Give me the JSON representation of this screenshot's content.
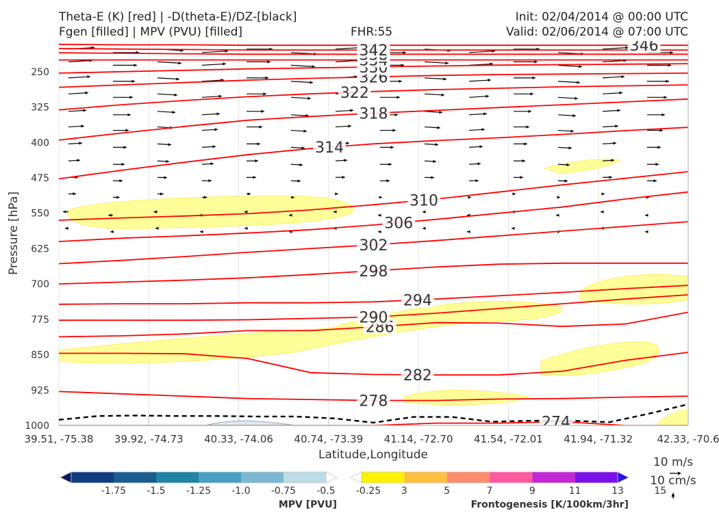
{
  "header": {
    "line1_left": "Theta-E (K) [red] | -D(theta-E)/DZ-[black]",
    "line2_left": "Fgen [filled] | MPV (PVU) [filled]",
    "fhr": "FHR:55",
    "init": "Init: 02/04/2014 @ 00:00 UTC",
    "valid": "Valid: 02/06/2014 @ 07:00 UTC"
  },
  "chart_data": {
    "type": "cross-section",
    "xlabel": "Latitude,Longitude",
    "ylabel": "Pressure [hPa]",
    "x_ticks": [
      "39.51, -75.38",
      "39.92, -74.73",
      "40.33, -74.06",
      "40.74, -73.39",
      "41.14, -72.70",
      "41.54, -72.01",
      "41.94, -71.32",
      "42.33, -70.6"
    ],
    "y_ticks": [
      250,
      325,
      400,
      475,
      550,
      625,
      700,
      775,
      850,
      925,
      1000
    ],
    "ylim": [
      1000,
      185
    ],
    "grid": "x only",
    "theta_e_color": "#ff0000",
    "theta_e_label_color": "#ff5a5a",
    "theta_e_contours": [
      {
        "label": "274",
        "values": [
          1000,
          1000,
          1000,
          1000,
          1000,
          1000,
          995,
          995,
          992,
          1000,
          1000
        ]
      },
      {
        "label": "278",
        "values": [
          928,
          933,
          938,
          943,
          945,
          947,
          947,
          944,
          943,
          940,
          938
        ]
      },
      {
        "label": "282",
        "values": [
          847,
          847,
          848,
          858,
          888,
          892,
          893,
          893,
          885,
          862,
          845
        ]
      },
      {
        "label": "286",
        "values": [
          812,
          810,
          806,
          799,
          799,
          791,
          782,
          783,
          790,
          785,
          760
        ]
      },
      {
        "label": "290",
        "values": [
          777,
          777,
          777,
          776,
          773,
          770,
          762,
          752,
          742,
          732,
          723
        ]
      },
      {
        "label": "294",
        "values": [
          743,
          742,
          742,
          740,
          740,
          738,
          732,
          725,
          718,
          710,
          703
        ]
      },
      {
        "label": "298",
        "values": [
          700,
          696,
          692,
          687,
          680,
          672,
          664,
          658,
          656,
          656,
          656
        ]
      },
      {
        "label": "302",
        "values": [
          657,
          650,
          642,
          633,
          625,
          617,
          608,
          598,
          588,
          578,
          568
        ]
      },
      {
        "label": "306",
        "values": [
          610,
          603,
          598,
          592,
          585,
          575,
          563,
          550,
          537,
          520,
          505
        ]
      },
      {
        "label": "310",
        "values": [
          565,
          560,
          556,
          551,
          543,
          532,
          520,
          505,
          490,
          476,
          462
        ]
      },
      {
        "label": "314",
        "values": [
          477,
          459,
          442,
          426,
          413,
          403,
          396,
          390,
          383,
          375,
          368
        ]
      },
      {
        "label": "318",
        "values": [
          395,
          380,
          366,
          353,
          345,
          338,
          332,
          326,
          320,
          314,
          308
        ]
      },
      {
        "label": "322",
        "values": [
          331,
          320,
          311,
          303,
          297,
          292,
          288,
          285,
          282,
          280,
          278
        ]
      },
      {
        "label": "326",
        "values": [
          283,
          278,
          273,
          268,
          264,
          261,
          258,
          256,
          255,
          254,
          253
        ]
      },
      {
        "label": "330",
        "values": [
          253,
          250,
          247,
          244,
          242,
          240,
          238,
          236,
          235,
          234,
          233
        ]
      },
      {
        "label": "334",
        "values": [
          225,
          225,
          225,
          225,
          225,
          225,
          225,
          225,
          225,
          225,
          225
        ]
      },
      {
        "label": "338",
        "values": [
          210,
          211,
          212,
          213,
          213,
          213,
          213,
          213,
          213,
          213,
          213
        ]
      },
      {
        "label": "342",
        "values": [
          201,
          202,
          203,
          204,
          204,
          204,
          204,
          204,
          204,
          204,
          204
        ]
      },
      {
        "label": "346",
        "values": [
          192,
          193,
          193,
          194,
          194,
          194,
          194,
          194,
          194,
          194,
          194
        ]
      }
    ],
    "dthetae_dz_contour": {
      "label": "",
      "style": "dashed",
      "color": "#000000",
      "values": [
        988,
        980,
        979,
        980,
        980,
        981,
        981,
        985,
        994,
        982,
        982,
        992,
        990,
        990,
        993,
        975,
        955
      ]
    },
    "mpv_colorbar": {
      "label": "MPV [PVU]",
      "tick_labels": [
        "-1.75",
        "-1.5",
        "-1.25",
        "-1.0",
        "-0.75",
        "-0.5",
        "-0.25"
      ],
      "colors": [
        "#0a1a63",
        "#0e3c7f",
        "#195c90",
        "#1f83a6",
        "#4aa0c4",
        "#7db8d3",
        "#bcdde6",
        "#ffffff"
      ]
    },
    "fgen_colorbar": {
      "label": "Frontogenesis [K/100km/3hr]",
      "tick_labels": [
        "3",
        "5",
        "7",
        "9",
        "11",
        "13",
        "15"
      ],
      "colors": [
        "#ffffff",
        "#fff200",
        "#ffc040",
        "#ff8c6e",
        "#ff5aa0",
        "#c427d6",
        "#7a10e8",
        "#2a0ff0"
      ]
    },
    "wind_legend": {
      "horizontal": "10 m/s",
      "vertical": "10 cm/s"
    }
  }
}
